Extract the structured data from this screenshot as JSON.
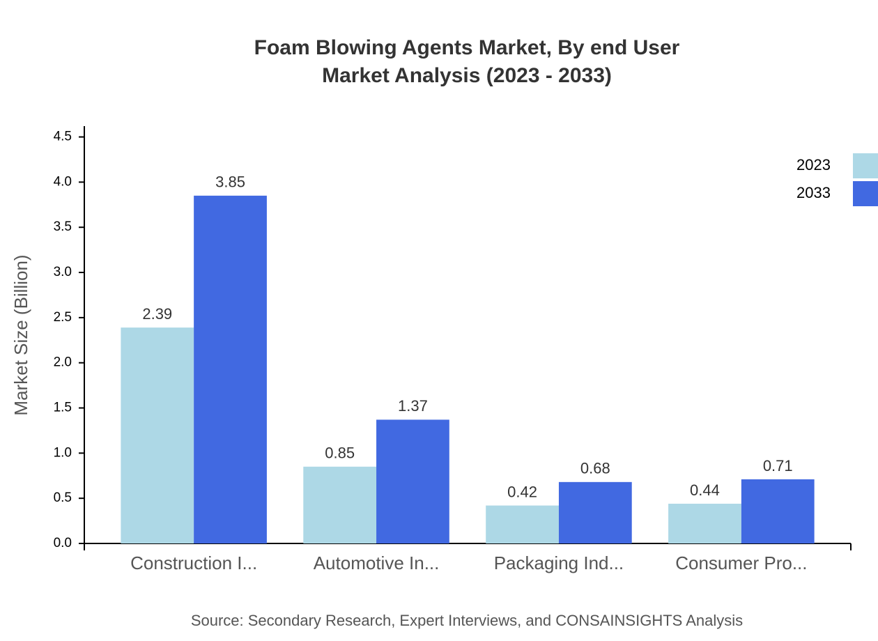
{
  "chart_data": {
    "type": "bar",
    "title": [
      "Foam Blowing Agents Market, By end User",
      "Market Analysis (2023 - 2033)"
    ],
    "y_label": "Market Size (Billion)",
    "source": "Source: Secondary Research, Expert Interviews, and CONSAINSIGHTS Analysis",
    "categories": [
      "Construction I...",
      "Automotive In...",
      "Packaging Ind...",
      "Consumer Pro..."
    ],
    "series": [
      {
        "name": "2023",
        "color": "#add8e6",
        "values": [
          2.39,
          0.85,
          0.42,
          0.44
        ]
      },
      {
        "name": "2033",
        "color": "#4169e1",
        "values": [
          3.85,
          1.37,
          0.68,
          0.71
        ]
      }
    ],
    "ylim": [
      0,
      4.62
    ],
    "yticks": [
      {
        "value": 0,
        "label": "0.0"
      },
      {
        "value": 0.5,
        "label": "0.5"
      },
      {
        "value": 1,
        "label": "1.0"
      },
      {
        "value": 1.5,
        "label": "1.5"
      },
      {
        "value": 2,
        "label": "2.0"
      },
      {
        "value": 2.5,
        "label": "2.5"
      },
      {
        "value": 3,
        "label": "3.0"
      },
      {
        "value": 3.5,
        "label": "3.5"
      },
      {
        "value": 4,
        "label": "4.0"
      },
      {
        "value": 4.5,
        "label": "4.5"
      }
    ],
    "legend": "top-right"
  }
}
